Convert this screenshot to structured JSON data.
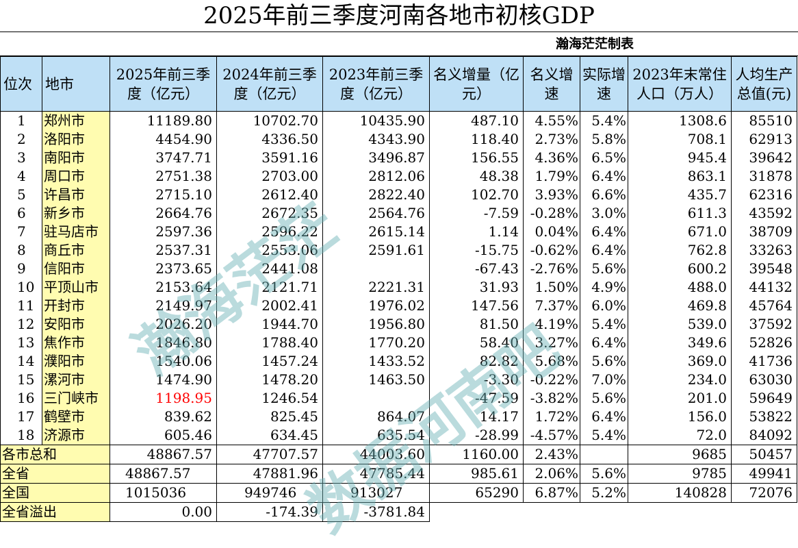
{
  "title": "2025年前三季度河南各地市初核GDP",
  "credit": "瀚海茫茫制表",
  "headers": {
    "rank": "位次",
    "city": "地市",
    "gdp2025": "2025年前三季度（亿元）",
    "gdp2024": "2024年前三季度（亿元）",
    "gdp2023": "2023年前三季度（亿元）",
    "nominal_increase": "名义增量（亿元）",
    "nominal_growth": "名义增速",
    "real_growth": "实际增速",
    "population": "2023年末常住人口（万人）",
    "per_capita": "人均生产总值(元)"
  },
  "rows": [
    {
      "rank": "1",
      "city": "郑州市",
      "gdp2025": "11189.80",
      "gdp2024": "10702.70",
      "gdp2023": "10435.90",
      "inc": "487.10",
      "ng": "4.55%",
      "rg": "5.4%",
      "pop": "1308.6",
      "pc": "85510"
    },
    {
      "rank": "2",
      "city": "洛阳市",
      "gdp2025": "4454.90",
      "gdp2024": "4336.50",
      "gdp2023": "4343.90",
      "inc": "118.40",
      "ng": "2.73%",
      "rg": "5.8%",
      "pop": "708.1",
      "pc": "62913"
    },
    {
      "rank": "3",
      "city": "南阳市",
      "gdp2025": "3747.71",
      "gdp2024": "3591.16",
      "gdp2023": "3496.87",
      "inc": "156.55",
      "ng": "4.36%",
      "rg": "6.5%",
      "pop": "945.4",
      "pc": "39642"
    },
    {
      "rank": "4",
      "city": "周口市",
      "gdp2025": "2751.38",
      "gdp2024": "2703.00",
      "gdp2023": "2812.06",
      "inc": "48.38",
      "ng": "1.79%",
      "rg": "6.4%",
      "pop": "863.1",
      "pc": "31878"
    },
    {
      "rank": "5",
      "city": "许昌市",
      "gdp2025": "2715.10",
      "gdp2024": "2612.40",
      "gdp2023": "2822.40",
      "inc": "102.70",
      "ng": "3.93%",
      "rg": "6.6%",
      "pop": "435.7",
      "pc": "62316"
    },
    {
      "rank": "6",
      "city": "新乡市",
      "gdp2025": "2664.76",
      "gdp2024": "2672.35",
      "gdp2023": "2564.76",
      "inc": "-7.59",
      "ng": "-0.28%",
      "rg": "3.0%",
      "pop": "611.3",
      "pc": "43592"
    },
    {
      "rank": "7",
      "city": "驻马店市",
      "gdp2025": "2597.36",
      "gdp2024": "2596.22",
      "gdp2023": "2615.14",
      "inc": "1.14",
      "ng": "0.04%",
      "rg": "6.4%",
      "pop": "671.0",
      "pc": "38709"
    },
    {
      "rank": "8",
      "city": "商丘市",
      "gdp2025": "2537.31",
      "gdp2024": "2553.06",
      "gdp2023": "2591.61",
      "inc": "-15.75",
      "ng": "-0.62%",
      "rg": "6.4%",
      "pop": "762.8",
      "pc": "33263"
    },
    {
      "rank": "9",
      "city": "信阳市",
      "gdp2025": "2373.65",
      "gdp2024": "2441.08",
      "gdp2023": "",
      "inc": "-67.43",
      "ng": "-2.76%",
      "rg": "5.6%",
      "pop": "600.2",
      "pc": "39548"
    },
    {
      "rank": "10",
      "city": "平顶山市",
      "gdp2025": "2153.64",
      "gdp2024": "2121.71",
      "gdp2023": "2221.31",
      "inc": "31.93",
      "ng": "1.50%",
      "rg": "4.9%",
      "pop": "488.0",
      "pc": "44132"
    },
    {
      "rank": "11",
      "city": "开封市",
      "gdp2025": "2149.97",
      "gdp2024": "2002.41",
      "gdp2023": "1976.02",
      "inc": "147.56",
      "ng": "7.37%",
      "rg": "6.0%",
      "pop": "469.8",
      "pc": "45764"
    },
    {
      "rank": "12",
      "city": "安阳市",
      "gdp2025": "2026.20",
      "gdp2024": "1944.70",
      "gdp2023": "1956.80",
      "inc": "81.50",
      "ng": "4.19%",
      "rg": "5.4%",
      "pop": "539.0",
      "pc": "37592"
    },
    {
      "rank": "13",
      "city": "焦作市",
      "gdp2025": "1846.80",
      "gdp2024": "1788.40",
      "gdp2023": "1770.20",
      "inc": "58.40",
      "ng": "3.27%",
      "rg": "6.4%",
      "pop": "349.6",
      "pc": "52826"
    },
    {
      "rank": "14",
      "city": "濮阳市",
      "gdp2025": "1540.06",
      "gdp2024": "1457.24",
      "gdp2023": "1433.52",
      "inc": "82.82",
      "ng": "5.68%",
      "rg": "5.6%",
      "pop": "369.0",
      "pc": "41736"
    },
    {
      "rank": "15",
      "city": "漯河市",
      "gdp2025": "1474.90",
      "gdp2024": "1478.20",
      "gdp2023": "1463.50",
      "inc": "-3.30",
      "ng": "-0.22%",
      "rg": "7.0%",
      "pop": "234.0",
      "pc": "63030"
    },
    {
      "rank": "16",
      "city": "三门峡市",
      "gdp2025": "1198.95",
      "gdp2024": "1246.54",
      "gdp2023": "",
      "inc": "-47.59",
      "ng": "-3.82%",
      "rg": "5.6%",
      "pop": "201.0",
      "pc": "59649",
      "highlight": "#ff0000"
    },
    {
      "rank": "17",
      "city": "鹤壁市",
      "gdp2025": "839.62",
      "gdp2024": "825.45",
      "gdp2023": "864.07",
      "inc": "14.17",
      "ng": "1.72%",
      "rg": "6.4%",
      "pop": "156.0",
      "pc": "53822"
    },
    {
      "rank": "18",
      "city": "济源市",
      "gdp2025": "605.46",
      "gdp2024": "634.45",
      "gdp2023": "635.54",
      "inc": "-28.99",
      "ng": "-4.57%",
      "rg": "5.4%",
      "pop": "72.0",
      "pc": "84092"
    }
  ],
  "summary": {
    "sum": {
      "label": "各市总和",
      "gdp2025": "48867.57",
      "gdp2024": "47707.57",
      "gdp2023": "44003.60",
      "inc": "1160.00",
      "ng": "2.43%",
      "rg": "",
      "pop": "9685",
      "pc": "50457"
    },
    "province": {
      "label": "全省",
      "gdp2025": "48867.57",
      "gdp2024": "47881.96",
      "gdp2023": "47785.44",
      "inc": "985.61",
      "ng": "2.06%",
      "rg": "5.6%",
      "pop": "9785",
      "pc": "49941"
    },
    "national": {
      "label": "全国",
      "gdp2025": "1015036",
      "gdp2024": "949746",
      "gdp2023": "913027",
      "inc": "65290",
      "ng": "6.87%",
      "rg": "5.2%",
      "pop": "140828",
      "pc": "72076"
    },
    "overflow": {
      "label": "全省溢出",
      "gdp2025": "0.00",
      "gdp2024": "-174.39",
      "gdp2023": "-3781.84"
    }
  },
  "watermarks": [
    "瀚海茫茫",
    "数据河南吧"
  ],
  "colors": {
    "header_bg": "#bfe0f6",
    "city_bg": "#fffcb0",
    "highlight": "#ff0000",
    "watermark": "#66b0b4"
  }
}
